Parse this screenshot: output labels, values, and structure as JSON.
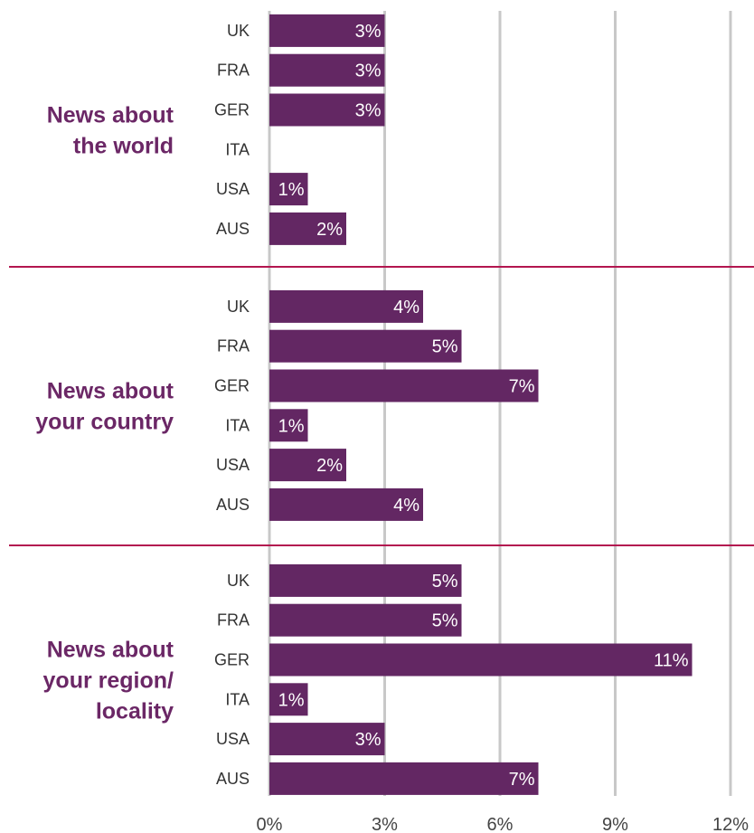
{
  "chart_data": {
    "type": "bar",
    "orientation": "horizontal",
    "xlim": [
      0,
      12
    ],
    "x_ticks": [
      "0%",
      "3%",
      "6%",
      "9%",
      "12%"
    ],
    "grid": true,
    "colors": {
      "bar": "#632763",
      "grid": "#c8c8c8",
      "separator": "#b3164f",
      "title": "#6b2766",
      "bar_label": "#ffffff"
    },
    "groups": [
      {
        "title_lines": [
          "News about",
          "the world"
        ],
        "categories": [
          "UK",
          "FRA",
          "GER",
          "ITA",
          "USA",
          "AUS"
        ],
        "values": [
          3,
          3,
          3,
          null,
          1,
          2
        ],
        "labels": [
          "3%",
          "3%",
          "3%",
          "",
          "1%",
          "2%"
        ]
      },
      {
        "title_lines": [
          "News about",
          "your country"
        ],
        "categories": [
          "UK",
          "FRA",
          "GER",
          "ITA",
          "USA",
          "AUS"
        ],
        "values": [
          4,
          5,
          7,
          1,
          2,
          4
        ],
        "labels": [
          "4%",
          "5%",
          "7%",
          "1%",
          "2%",
          "4%"
        ]
      },
      {
        "title_lines": [
          "News about",
          "your region/",
          "locality"
        ],
        "categories": [
          "UK",
          "FRA",
          "GER",
          "ITA",
          "USA",
          "AUS"
        ],
        "values": [
          5,
          5,
          11,
          1,
          3,
          7
        ],
        "labels": [
          "5%",
          "5%",
          "11%",
          "1%",
          "3%",
          "7%"
        ]
      }
    ]
  }
}
